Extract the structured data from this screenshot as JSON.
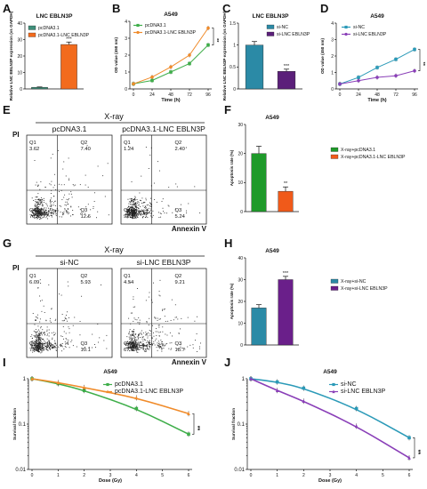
{
  "panels": [
    {
      "id": "A",
      "label": "A",
      "type": "bar",
      "title": "LNC EBLN3P",
      "ylabel": "Relative LNC EBLN3P expression (vs GAPDH)",
      "categories": [
        "pcDNA3.1",
        "pcDNA3.1-LNC EBLN3P"
      ],
      "values": [
        1,
        27
      ],
      "errors": [
        0.2,
        1.5
      ],
      "colors": [
        "#3f8f7a",
        "#f26b1d"
      ],
      "ylim": [
        0,
        40
      ],
      "yticks": [
        0,
        10,
        20,
        30,
        40
      ],
      "sig": [
        "***"
      ],
      "legend": "top-left"
    },
    {
      "id": "B",
      "label": "B",
      "type": "line",
      "title": "A549",
      "ylabel": "OD value (450 nm)",
      "xlabel": "Time (h)",
      "x": [
        0,
        24,
        48,
        72,
        96
      ],
      "xticks": [
        0,
        24,
        48,
        72,
        96
      ],
      "ylim": [
        0,
        4
      ],
      "yticks": [
        0,
        1,
        2,
        3,
        4
      ],
      "series": [
        {
          "name": "pcDNA3.1",
          "color": "#3fae4a",
          "marker": "square",
          "values": [
            0.3,
            0.5,
            1.0,
            1.5,
            2.6
          ]
        },
        {
          "name": "pcDNA3.1-LNC EBLN3P",
          "color": "#f08b2a",
          "marker": "circle",
          "values": [
            0.3,
            0.7,
            1.3,
            2.0,
            3.6
          ]
        }
      ],
      "sig": [
        "**"
      ],
      "legend": "top-left"
    },
    {
      "id": "C",
      "label": "C",
      "type": "bar",
      "title": "LNC EBLN3P",
      "ylabel": "Relative LNC EBLN3P expression (vs GAPDH)",
      "categories": [
        "si-NC",
        "si-LNC EBLN3P"
      ],
      "values": [
        1.0,
        0.4
      ],
      "errors": [
        0.08,
        0.05
      ],
      "colors": [
        "#2b8aa6",
        "#5b1f7a"
      ],
      "ylim": [
        0,
        1.5
      ],
      "yticks": [
        0.0,
        0.5,
        1.0,
        1.5
      ],
      "sig": [
        "***"
      ],
      "legend": "top-right"
    },
    {
      "id": "D",
      "label": "D",
      "type": "line",
      "title": "A549",
      "ylabel": "OD value (450 nm)",
      "xlabel": "Time (h)",
      "x": [
        0,
        24,
        48,
        72,
        96
      ],
      "xticks": [
        0,
        24,
        48,
        72,
        96
      ],
      "ylim": [
        0,
        4
      ],
      "yticks": [
        0,
        1,
        2,
        3,
        4
      ],
      "series": [
        {
          "name": "si-NC",
          "color": "#2b9ab8",
          "marker": "square",
          "values": [
            0.3,
            0.7,
            1.3,
            1.8,
            2.4
          ]
        },
        {
          "name": "si-LNC EBLN3P",
          "color": "#8a3fb8",
          "marker": "circle",
          "values": [
            0.3,
            0.5,
            0.7,
            0.8,
            1.1
          ]
        }
      ],
      "sig": [
        "**"
      ],
      "legend": "top-left"
    },
    {
      "id": "F",
      "label": "F",
      "type": "bar",
      "title": "A549",
      "ylabel": "Apoptosis rate (%)",
      "categories": [
        "X-ray+pcDNA3.1",
        "X-ray+pcDNA3.1-LNC EBLN3P"
      ],
      "values": [
        20,
        7
      ],
      "errors": [
        2.5,
        1.5
      ],
      "colors": [
        "#1f9a2a",
        "#f05a1a"
      ],
      "ylim": [
        0,
        30
      ],
      "yticks": [
        0,
        10,
        20,
        30
      ],
      "sig": [
        "**"
      ],
      "legend": "right"
    },
    {
      "id": "H",
      "label": "H",
      "type": "bar",
      "title": "A549",
      "ylabel": "Apoptosis rate (%)",
      "categories": [
        "X-ray+si-NC",
        "X-ray+si-LNC EBLN3P"
      ],
      "values": [
        17,
        30
      ],
      "errors": [
        1.5,
        1.5
      ],
      "colors": [
        "#2b8aa6",
        "#6a1f8a"
      ],
      "ylim": [
        0,
        40
      ],
      "yticks": [
        0,
        10,
        20,
        30,
        40
      ],
      "sig": [
        "***"
      ],
      "legend": "right"
    },
    {
      "id": "I",
      "label": "I",
      "type": "line",
      "title": "A549",
      "ylabel": "Survival fraction",
      "xlabel": "Dose (Gy)",
      "yscale": "log",
      "x": [
        0,
        1,
        2,
        3,
        4,
        5,
        6
      ],
      "points": [
        0,
        1,
        2,
        4,
        6
      ],
      "xticks": [
        0,
        1,
        2,
        3,
        4,
        5,
        6
      ],
      "ylim": [
        0.01,
        1
      ],
      "yticks": [
        0.01,
        0.1,
        1
      ],
      "yticklabels": [
        "0.01",
        "0.1",
        "1"
      ],
      "series": [
        {
          "name": "pcDNA3.1",
          "color": "#3fae4a",
          "marker": "square",
          "values": [
            1,
            0.78,
            0.55,
            0.22,
            0.06
          ]
        },
        {
          "name": "pcDNA3.1-LNC EBLN3P",
          "color": "#f08b2a",
          "marker": "triangle",
          "values": [
            1,
            0.82,
            0.64,
            0.38,
            0.17
          ]
        }
      ],
      "sig": [
        "**"
      ],
      "legend": "top-right"
    },
    {
      "id": "J",
      "label": "J",
      "type": "line",
      "title": "A549",
      "ylabel": "Survival fraction",
      "xlabel": "Dose (Gy)",
      "yscale": "log",
      "x": [
        0,
        1,
        2,
        3,
        4,
        5,
        6
      ],
      "points": [
        0,
        1,
        2,
        4,
        6
      ],
      "xticks": [
        0,
        1,
        2,
        3,
        4,
        5,
        6
      ],
      "ylim": [
        0.01,
        1
      ],
      "yticks": [
        0.01,
        0.1,
        1
      ],
      "yticklabels": [
        "0.01",
        "0.1",
        "1"
      ],
      "series": [
        {
          "name": "si-NC",
          "color": "#2b9ab8",
          "marker": "square",
          "values": [
            1,
            0.85,
            0.62,
            0.22,
            0.05
          ]
        },
        {
          "name": "si-LNC EBLN3P",
          "color": "#8a3fb8",
          "marker": "triangle",
          "values": [
            1,
            0.55,
            0.32,
            0.09,
            0.018
          ]
        }
      ],
      "sig": [
        "**"
      ],
      "legend": "top-right"
    }
  ],
  "flow": [
    {
      "id": "E",
      "label": "E",
      "header": "X-ray",
      "ylabel": "PI",
      "xlabel": "Annexin V",
      "plots": [
        {
          "title": "pcDNA3.1",
          "q": [
            "3.62",
            "7.40",
            "76.4",
            "12.6"
          ]
        },
        {
          "title": "pcDNA3.1-LNC EBLN3P",
          "q": [
            "1.24",
            "2.40",
            "91.1",
            "5.24"
          ]
        }
      ]
    },
    {
      "id": "G",
      "label": "G",
      "header": "X-ray",
      "ylabel": "PI",
      "xlabel": "Annexin V",
      "plots": [
        {
          "title": "si-NC",
          "q": [
            "6.09",
            "5.93",
            "77.9",
            "10.1"
          ]
        },
        {
          "title": "si-LNC EBLN3P",
          "q": [
            "4.54",
            "9.21",
            "67.6",
            "18.7"
          ]
        }
      ]
    }
  ],
  "quadrant_names": [
    "Q1",
    "Q2",
    "Q4",
    "Q3"
  ]
}
